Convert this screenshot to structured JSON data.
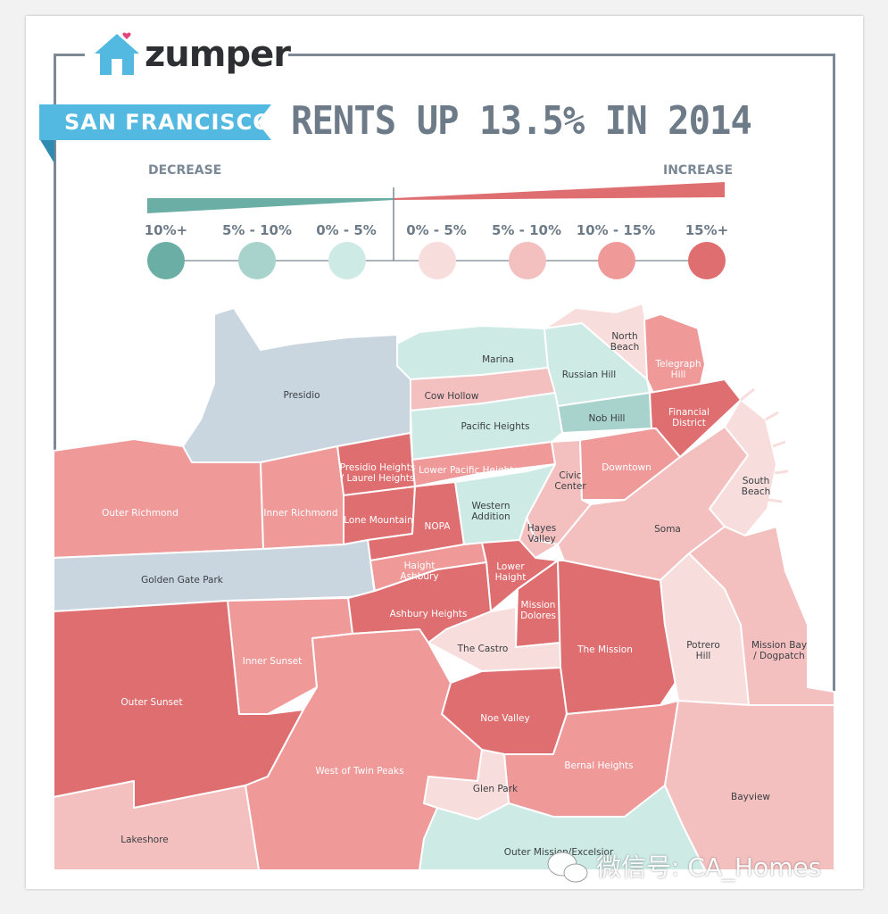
{
  "brand": {
    "name": "zumper"
  },
  "header": {
    "city": "SAN FRANCISCO",
    "headline": "RENTS UP 13.5% IN 2014"
  },
  "legend": {
    "decrease_label": "DECREASE",
    "increase_label": "INCREASE",
    "buckets": [
      {
        "label": "10%+",
        "color": "#6aaea6"
      },
      {
        "label": "5% - 10%",
        "color": "#a8d3cd"
      },
      {
        "label": "0% - 5%",
        "color": "#cdeae4"
      },
      {
        "label": "0% - 5%",
        "color": "#f7dddb"
      },
      {
        "label": "5% - 10%",
        "color": "#f3c0bf"
      },
      {
        "label": "10% - 15%",
        "color": "#ef9999"
      },
      {
        "label": "15%+",
        "color": "#df6e70"
      }
    ]
  },
  "neighborhoods": [
    {
      "name": "Presidio",
      "color": "#c9d6e0"
    },
    {
      "name": "Marina",
      "color": "#cdeae4"
    },
    {
      "name": "Russian Hill",
      "color": "#cdeae4"
    },
    {
      "name": "North Beach",
      "color": "#f7dddb"
    },
    {
      "name": "Telegraph Hill",
      "color": "#ef9999"
    },
    {
      "name": "Cow Hollow",
      "color": "#f3c0bf"
    },
    {
      "name": "Nob Hill",
      "color": "#a8d3cd"
    },
    {
      "name": "Financial District",
      "color": "#df6e70"
    },
    {
      "name": "Pacific Heights",
      "color": "#cdeae4"
    },
    {
      "name": "Presidio Heights / Laurel Heights",
      "color": "#df6e70"
    },
    {
      "name": "Lower Pacific Heights",
      "color": "#ef9999"
    },
    {
      "name": "Civic Center",
      "color": "#f3c0bf"
    },
    {
      "name": "Downtown",
      "color": "#ef9999"
    },
    {
      "name": "South Beach",
      "color": "#f7dddb"
    },
    {
      "name": "Outer Richmond",
      "color": "#ef9999"
    },
    {
      "name": "Inner Richmond",
      "color": "#ef9999"
    },
    {
      "name": "Lone Mountain",
      "color": "#df6e70"
    },
    {
      "name": "NOPA",
      "color": "#df6e70"
    },
    {
      "name": "Western Addition",
      "color": "#cdeae4"
    },
    {
      "name": "Hayes Valley",
      "color": "#f3c0bf"
    },
    {
      "name": "Soma",
      "color": "#f3c0bf"
    },
    {
      "name": "Golden Gate Park",
      "color": "#c9d6e0"
    },
    {
      "name": "Haight Ashbury",
      "color": "#ef9999"
    },
    {
      "name": "Lower Haight",
      "color": "#df6e70"
    },
    {
      "name": "Ashbury Heights",
      "color": "#df6e70"
    },
    {
      "name": "Mission Dolores",
      "color": "#df6e70"
    },
    {
      "name": "Inner Sunset",
      "color": "#ef9999"
    },
    {
      "name": "The Castro",
      "color": "#f7dddb"
    },
    {
      "name": "The Mission",
      "color": "#df6e70"
    },
    {
      "name": "Potrero Hill",
      "color": "#f7dddb"
    },
    {
      "name": "Mission Bay / Dogpatch",
      "color": "#f3c0bf"
    },
    {
      "name": "Outer Sunset",
      "color": "#df6e70"
    },
    {
      "name": "Noe Valley",
      "color": "#df6e70"
    },
    {
      "name": "West of Twin Peaks",
      "color": "#ef9999"
    },
    {
      "name": "Bernal Heights",
      "color": "#ef9999"
    },
    {
      "name": "Glen Park",
      "color": "#f7dddb"
    },
    {
      "name": "Bayview",
      "color": "#f3c0bf"
    },
    {
      "name": "Lakeshore",
      "color": "#f3c0bf"
    },
    {
      "name": "Outer Mission/Excelsior",
      "color": "#cdeae4"
    }
  ],
  "watermark": {
    "text": "微信号: CA_Homes"
  }
}
